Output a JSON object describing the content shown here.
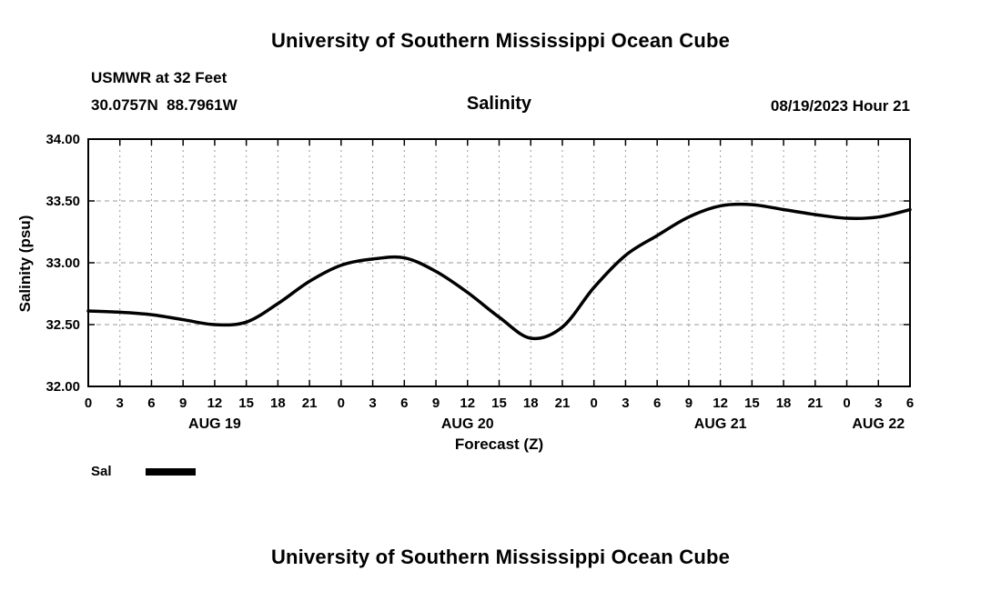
{
  "page": {
    "title_top": "University of Southern Mississippi Ocean Cube",
    "title_bottom": "University of Southern Mississippi Ocean Cube"
  },
  "header": {
    "station": "USMWR at 32 Feet",
    "coordinates": "30.0757N  88.7961W",
    "plot_title": "Salinity",
    "run_time": "08/19/2023 Hour 21"
  },
  "legend": {
    "label": "Sal",
    "swatch_color": "#000000"
  },
  "chart_data": {
    "type": "line",
    "title": "Salinity",
    "xlabel": "Forecast (Z)",
    "ylabel": "Salinity (psu)",
    "ylim": [
      32.0,
      34.0
    ],
    "y_ticks": [
      32.0,
      32.5,
      33.0,
      33.5,
      34.0
    ],
    "y_tick_labels": [
      "32.00",
      "32.50",
      "33.00",
      "33.50",
      "34.00"
    ],
    "x_hours_span": [
      0,
      78
    ],
    "x_tick_interval": 3,
    "x_tick_labels": [
      "0",
      "3",
      "6",
      "9",
      "12",
      "15",
      "18",
      "21",
      "0",
      "3",
      "6",
      "9",
      "12",
      "15",
      "18",
      "21",
      "0",
      "3",
      "6",
      "9",
      "12",
      "15",
      "18",
      "21",
      "0",
      "3",
      "6"
    ],
    "day_labels": [
      {
        "label": "AUG 19",
        "center_hour": 12
      },
      {
        "label": "AUG 20",
        "center_hour": 36
      },
      {
        "label": "AUG 21",
        "center_hour": 60
      },
      {
        "label": "AUG 22",
        "center_hour": 75
      }
    ],
    "grid": "dashed",
    "grid_color": "#999999",
    "axis_color": "#000000",
    "series": [
      {
        "name": "Sal",
        "color": "#000000",
        "x": [
          0,
          3,
          6,
          9,
          12,
          15,
          18,
          21,
          24,
          27,
          30,
          33,
          36,
          39,
          42,
          45,
          48,
          51,
          54,
          57,
          60,
          63,
          66,
          69,
          72,
          75,
          78
        ],
        "values": [
          32.61,
          32.6,
          32.58,
          32.54,
          32.5,
          32.52,
          32.67,
          32.85,
          32.98,
          33.03,
          33.04,
          32.93,
          32.76,
          32.56,
          32.39,
          32.48,
          32.8,
          33.06,
          33.22,
          33.37,
          33.46,
          33.47,
          33.43,
          33.39,
          33.36,
          33.37,
          33.43
        ]
      }
    ]
  }
}
